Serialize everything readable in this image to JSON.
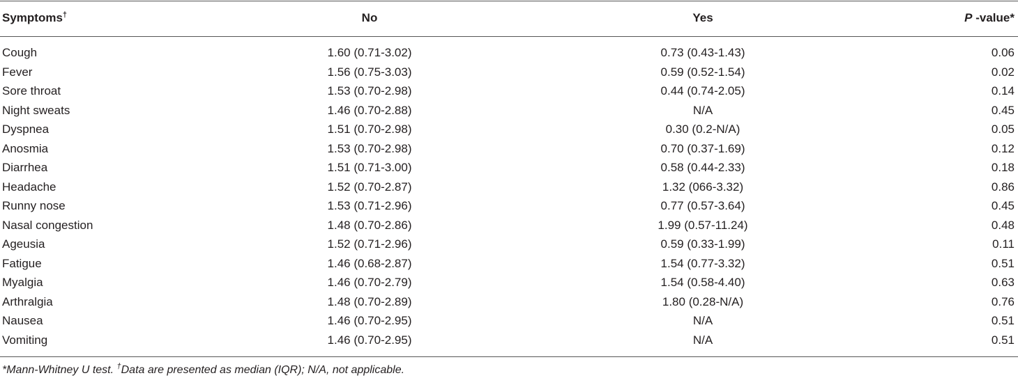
{
  "header": {
    "symptoms": "Symptoms",
    "symptoms_mark": "†",
    "no": "No",
    "yes": "Yes",
    "pvalue_p": "P",
    "pvalue_rest": " -value*"
  },
  "table": {
    "rows": [
      [
        "Cough",
        "1.60 (0.71-3.02)",
        "0.73 (0.43-1.43)",
        "0.06"
      ],
      [
        "Fever",
        "1.56 (0.75-3.03)",
        "0.59 (0.52-1.54)",
        "0.02"
      ],
      [
        "Sore throat",
        "1.53 (0.70-2.98)",
        "0.44 (0.74-2.05)",
        "0.14"
      ],
      [
        "Night sweats",
        "1.46 (0.70-2.88)",
        "N/A",
        "0.45"
      ],
      [
        "Dyspnea",
        "1.51 (0.70-2.98)",
        "0.30 (0.2-N/A)",
        "0.05"
      ],
      [
        "Anosmia",
        "1.53 (0.70-2.98)",
        "0.70 (0.37-1.69)",
        "0.12"
      ],
      [
        "Diarrhea",
        "1.51 (0.71-3.00)",
        "0.58 (0.44-2.33)",
        "0.18"
      ],
      [
        "Headache",
        "1.52 (0.70-2.87)",
        "1.32 (066-3.32)",
        "0.86"
      ],
      [
        "Runny nose",
        "1.53 (0.71-2.96)",
        "0.77 (0.57-3.64)",
        "0.45"
      ],
      [
        "Nasal congestion",
        "1.48 (0.70-2.86)",
        "1.99 (0.57-11.24)",
        "0.48"
      ],
      [
        "Ageusia",
        "1.52 (0.71-2.96)",
        "0.59 (0.33-1.99)",
        "0.11"
      ],
      [
        "Fatigue",
        "1.46 (0.68-2.87)",
        "1.54 (0.77-3.32)",
        "0.51"
      ],
      [
        "Myalgia",
        "1.46 (0.70-2.79)",
        "1.54 (0.58-4.40)",
        "0.63"
      ],
      [
        "Arthralgia",
        "1.48 (0.70-2.89)",
        "1.80 (0.28-N/A)",
        "0.76"
      ],
      [
        "Nausea",
        "1.46 (0.70-2.95)",
        "N/A",
        "0.51"
      ],
      [
        "Vomiting",
        "1.46 (0.70-2.95)",
        "N/A",
        "0.51"
      ]
    ]
  },
  "footnote": {
    "part1": "*Mann-Whitney U test. ",
    "mark": "†",
    "part2": "Data are presented as median (IQR); N/A, not applicable."
  }
}
